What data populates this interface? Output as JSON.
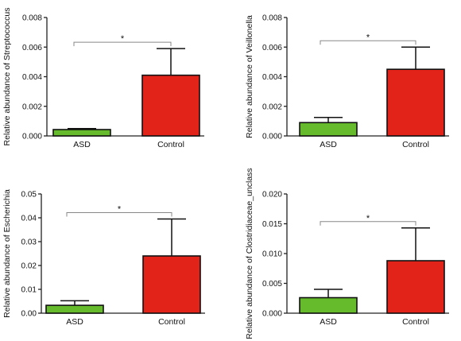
{
  "colors": {
    "asd": "#66bb2c",
    "control": "#e2231a"
  },
  "chart_data": [
    {
      "type": "bar",
      "categories": [
        "ASD",
        "Control"
      ],
      "values": [
        0.00043,
        0.0041
      ],
      "errors": [
        7e-05,
        0.0018
      ],
      "ylabel": "Relative abundance of Streptococcus",
      "ylim": [
        0,
        0.008
      ],
      "yticks": [
        "0.000",
        "0.002",
        "0.004",
        "0.006",
        "0.008"
      ],
      "significance": "*",
      "grid": false
    },
    {
      "type": "bar",
      "categories": [
        "ASD",
        "Control"
      ],
      "values": [
        0.0009,
        0.0045
      ],
      "errors": [
        0.00035,
        0.0015
      ],
      "ylabel": "Relative abundance of Veillonella",
      "ylim": [
        0,
        0.008
      ],
      "yticks": [
        "0.000",
        "0.002",
        "0.004",
        "0.006",
        "0.008"
      ],
      "significance": "*",
      "grid": false
    },
    {
      "type": "bar",
      "categories": [
        "ASD",
        "Control"
      ],
      "values": [
        0.0033,
        0.024
      ],
      "errors": [
        0.0019,
        0.0155
      ],
      "ylabel": "Relative abundance of Escherichia",
      "ylim": [
        0,
        0.05
      ],
      "yticks": [
        "0.00",
        "0.01",
        "0.02",
        "0.03",
        "0.04",
        "0.05"
      ],
      "significance": "*",
      "grid": false
    },
    {
      "type": "bar",
      "categories": [
        "ASD",
        "Control"
      ],
      "values": [
        0.0026,
        0.0088
      ],
      "errors": [
        0.0014,
        0.0055
      ],
      "ylabel": "Relative abundance of Clostridiaceae_unclass",
      "ylim": [
        0,
        0.02
      ],
      "yticks": [
        "0.000",
        "0.005",
        "0.010",
        "0.015",
        "0.020"
      ],
      "significance": "*",
      "grid": false
    }
  ]
}
